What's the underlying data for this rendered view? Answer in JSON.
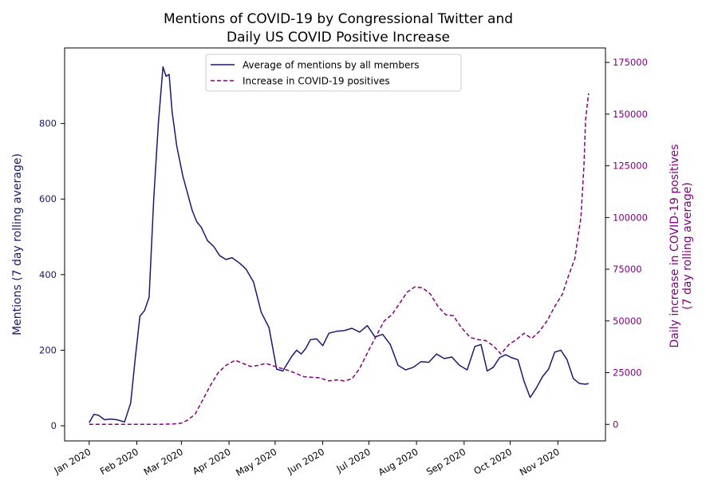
{
  "chart_data": {
    "type": "line",
    "title": [
      "Mentions of COVID-19 by Congressional Twitter and",
      "Daily US COVID Positive Increase"
    ],
    "xlabel": "",
    "ylabel_left": "Mentions (7 day rolling average)",
    "ylabel_right": [
      "Daily increase in COVID-19 positives",
      "(7 day rolling average)"
    ],
    "x_ticks": [
      "Jan 2020",
      "Feb 2020",
      "Mar 2020",
      "Apr 2020",
      "May 2020",
      "Jun 2020",
      "Jul 2020",
      "Aug 2020",
      "Sep 2020",
      "Oct 2020",
      "Nov 2020"
    ],
    "xlim": [
      "2019-12-16",
      "2020-12-02"
    ],
    "ylim_left": [
      -40,
      1000
    ],
    "ylim_right": [
      -8000,
      182000
    ],
    "y_ticks_left": [
      0,
      200,
      400,
      600,
      800
    ],
    "y_ticks_right": [
      0,
      25000,
      50000,
      75000,
      100000,
      125000,
      150000,
      175000
    ],
    "legend_position": "upper-center",
    "grid": false,
    "colors": {
      "mentions": "#191970",
      "positives": "#800080"
    },
    "series": [
      {
        "name": "Average of mentions by all members",
        "axis": "left",
        "style": "solid",
        "x": [
          "2020-01-01",
          "2020-01-04",
          "2020-01-07",
          "2020-01-11",
          "2020-01-15",
          "2020-01-19",
          "2020-01-24",
          "2020-01-28",
          "2020-01-31",
          "2020-02-03",
          "2020-02-06",
          "2020-02-09",
          "2020-02-12",
          "2020-02-15",
          "2020-02-18",
          "2020-02-20",
          "2020-02-22",
          "2020-02-24",
          "2020-02-27",
          "2020-03-02",
          "2020-03-05",
          "2020-03-08",
          "2020-03-11",
          "2020-03-14",
          "2020-03-18",
          "2020-03-22",
          "2020-03-26",
          "2020-03-30",
          "2020-04-03",
          "2020-04-08",
          "2020-04-12",
          "2020-04-17",
          "2020-04-22",
          "2020-04-27",
          "2020-05-02",
          "2020-05-06",
          "2020-05-09",
          "2020-05-12",
          "2020-05-15",
          "2020-05-18",
          "2020-05-21",
          "2020-05-24",
          "2020-05-28",
          "2020-06-01",
          "2020-06-05",
          "2020-06-10",
          "2020-06-15",
          "2020-06-20",
          "2020-06-25",
          "2020-06-30",
          "2020-07-05",
          "2020-07-10",
          "2020-07-15",
          "2020-07-20",
          "2020-07-25",
          "2020-07-30",
          "2020-08-04",
          "2020-08-09",
          "2020-08-14",
          "2020-08-19",
          "2020-08-24",
          "2020-08-29",
          "2020-09-03",
          "2020-09-08",
          "2020-09-12",
          "2020-09-16",
          "2020-09-20",
          "2020-09-24",
          "2020-09-28",
          "2020-10-02",
          "2020-10-06",
          "2020-10-10",
          "2020-10-14",
          "2020-10-18",
          "2020-10-22",
          "2020-10-26",
          "2020-10-30",
          "2020-11-03",
          "2020-11-07",
          "2020-11-11",
          "2020-11-15",
          "2020-11-19",
          "2020-11-21"
        ],
        "values": [
          8,
          30,
          28,
          16,
          18,
          16,
          10,
          60,
          180,
          290,
          305,
          340,
          600,
          800,
          950,
          925,
          930,
          830,
          740,
          660,
          615,
          570,
          540,
          525,
          490,
          475,
          450,
          440,
          445,
          430,
          415,
          380,
          300,
          260,
          150,
          145,
          165,
          185,
          200,
          190,
          205,
          228,
          230,
          212,
          245,
          250,
          252,
          258,
          248,
          265,
          235,
          242,
          215,
          160,
          148,
          155,
          170,
          168,
          190,
          178,
          182,
          160,
          148,
          210,
          215,
          145,
          155,
          180,
          188,
          180,
          175,
          118,
          75,
          100,
          130,
          150,
          195,
          200,
          175,
          125,
          112,
          110,
          112
        ]
      },
      {
        "name": "Increase in COVID-19 positives",
        "axis": "right",
        "style": "dashed",
        "x": [
          "2020-01-01",
          "2020-01-15",
          "2020-02-01",
          "2020-02-15",
          "2020-02-25",
          "2020-03-01",
          "2020-03-05",
          "2020-03-10",
          "2020-03-15",
          "2020-03-20",
          "2020-03-25",
          "2020-03-30",
          "2020-04-05",
          "2020-04-10",
          "2020-04-15",
          "2020-04-20",
          "2020-04-25",
          "2020-05-01",
          "2020-05-10",
          "2020-05-20",
          "2020-05-30",
          "2020-06-05",
          "2020-06-10",
          "2020-06-15",
          "2020-06-20",
          "2020-06-25",
          "2020-07-01",
          "2020-07-06",
          "2020-07-11",
          "2020-07-16",
          "2020-07-21",
          "2020-07-26",
          "2020-07-31",
          "2020-08-05",
          "2020-08-10",
          "2020-08-15",
          "2020-08-20",
          "2020-08-25",
          "2020-08-30",
          "2020-09-05",
          "2020-09-10",
          "2020-09-15",
          "2020-09-20",
          "2020-09-25",
          "2020-09-30",
          "2020-10-05",
          "2020-10-10",
          "2020-10-15",
          "2020-10-20",
          "2020-10-25",
          "2020-10-30",
          "2020-11-04",
          "2020-11-08",
          "2020-11-12",
          "2020-11-16",
          "2020-11-18",
          "2020-11-19",
          "2020-11-21"
        ],
        "values": [
          0,
          0,
          0,
          0,
          200,
          600,
          2000,
          5000,
          12000,
          19000,
          25000,
          28500,
          31000,
          29500,
          28000,
          28500,
          29500,
          28000,
          26000,
          23000,
          22500,
          21000,
          21500,
          21000,
          22000,
          27000,
          36000,
          43000,
          50000,
          53000,
          58500,
          64000,
          66500,
          66000,
          63000,
          57000,
          53000,
          52500,
          47000,
          42000,
          41000,
          40500,
          38000,
          34000,
          38500,
          41000,
          44000,
          41500,
          45000,
          50000,
          57000,
          63000,
          72000,
          80000,
          100000,
          125000,
          147000,
          160000
        ]
      }
    ]
  }
}
